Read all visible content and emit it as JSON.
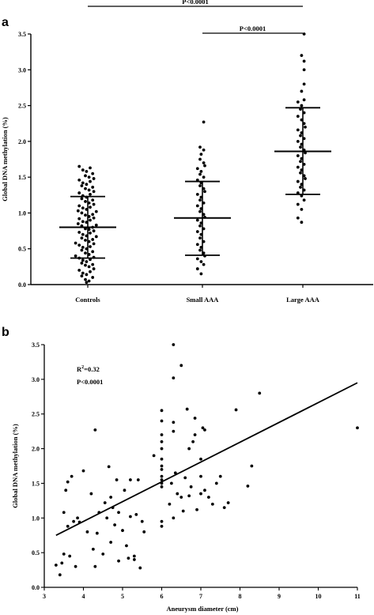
{
  "chart_data": [
    {
      "type": "scatter",
      "panel": "a",
      "ylabel": "Global DNA methylation (%)",
      "ylim": [
        0,
        3.5
      ],
      "yticks": [
        "0.0",
        "0.5",
        "1.0",
        "1.5",
        "2.0",
        "2.5",
        "3.0",
        "3.5"
      ],
      "categories": [
        "Controls",
        "Small AAA",
        "Large AAA"
      ],
      "significance": [
        {
          "label": "P<0.0001",
          "from": "Controls",
          "to": "Large AAA"
        },
        {
          "label": "P<0.0001",
          "from": "Small AAA",
          "to": "Large AAA"
        }
      ],
      "groups": [
        {
          "name": "Controls",
          "mean": 0.8,
          "sd_upper": 1.23,
          "sd_lower": 0.37,
          "values": [
            0.03,
            0.05,
            0.07,
            0.1,
            0.12,
            0.14,
            0.16,
            0.18,
            0.2,
            0.22,
            0.25,
            0.27,
            0.28,
            0.3,
            0.32,
            0.34,
            0.35,
            0.37,
            0.38,
            0.4,
            0.42,
            0.44,
            0.46,
            0.48,
            0.5,
            0.52,
            0.53,
            0.55,
            0.57,
            0.58,
            0.6,
            0.62,
            0.63,
            0.65,
            0.67,
            0.68,
            0.7,
            0.72,
            0.73,
            0.75,
            0.77,
            0.78,
            0.8,
            0.82,
            0.83,
            0.85,
            0.87,
            0.88,
            0.9,
            0.92,
            0.93,
            0.95,
            0.97,
            0.98,
            1.0,
            1.02,
            1.03,
            1.05,
            1.07,
            1.08,
            1.1,
            1.12,
            1.14,
            1.16,
            1.18,
            1.2,
            1.22,
            1.24,
            1.26,
            1.28,
            1.3,
            1.32,
            1.34,
            1.36,
            1.38,
            1.4,
            1.42,
            1.44,
            1.46,
            1.48,
            1.5,
            1.52,
            1.55,
            1.58,
            1.6,
            1.63,
            1.65
          ]
        },
        {
          "name": "Small AAA",
          "mean": 0.93,
          "sd_upper": 1.44,
          "sd_lower": 0.41,
          "values": [
            0.15,
            0.22,
            0.28,
            0.32,
            0.36,
            0.4,
            0.44,
            0.48,
            0.52,
            0.56,
            0.6,
            0.65,
            0.7,
            0.74,
            0.78,
            0.82,
            0.86,
            0.9,
            0.94,
            0.98,
            1.02,
            1.06,
            1.1,
            1.14,
            1.18,
            1.22,
            1.26,
            1.3,
            1.34,
            1.38,
            1.42,
            1.46,
            1.5,
            1.54,
            1.58,
            1.62,
            1.66,
            1.7,
            1.75,
            1.82,
            1.88,
            1.92,
            2.27
          ]
        },
        {
          "name": "Large AAA",
          "mean": 1.86,
          "sd_upper": 2.47,
          "sd_lower": 1.26,
          "values": [
            0.87,
            0.93,
            1.05,
            1.12,
            1.18,
            1.24,
            1.28,
            1.32,
            1.36,
            1.4,
            1.44,
            1.48,
            1.52,
            1.56,
            1.6,
            1.64,
            1.68,
            1.72,
            1.76,
            1.8,
            1.84,
            1.88,
            1.92,
            1.96,
            2.0,
            2.04,
            2.08,
            2.12,
            2.16,
            2.2,
            2.25,
            2.3,
            2.35,
            2.4,
            2.45,
            2.5,
            2.55,
            2.58,
            2.7,
            2.8,
            3.0,
            3.12,
            3.2,
            3.5
          ]
        }
      ]
    },
    {
      "type": "scatter",
      "panel": "b",
      "xlabel": "Aneurysm diameter (cm)",
      "ylabel": "Global DNA methylation (%)",
      "xlim": [
        3,
        11
      ],
      "ylim": [
        0,
        3.5
      ],
      "xticks": [
        "3",
        "4",
        "5",
        "6",
        "7",
        "8",
        "9",
        "10",
        "11"
      ],
      "yticks": [
        "0.0",
        "0.5",
        "1.0",
        "1.5",
        "2.0",
        "2.5",
        "3.0",
        "3.5"
      ],
      "annotation": {
        "r2_label": "R",
        "r2_sup": "2",
        "r2_value": "=0.32",
        "p_label": "P<0.0001"
      },
      "regression": {
        "x": [
          3.3,
          11
        ],
        "y": [
          0.75,
          2.95
        ]
      },
      "points": [
        [
          3.3,
          0.32
        ],
        [
          3.4,
          0.18
        ],
        [
          3.45,
          0.35
        ],
        [
          3.5,
          0.48
        ],
        [
          3.5,
          1.08
        ],
        [
          3.55,
          1.4
        ],
        [
          3.6,
          0.88
        ],
        [
          3.6,
          1.52
        ],
        [
          3.65,
          0.45
        ],
        [
          3.7,
          1.6
        ],
        [
          3.75,
          0.95
        ],
        [
          3.8,
          0.3
        ],
        [
          3.85,
          1.0
        ],
        [
          3.9,
          0.94
        ],
        [
          4.0,
          1.68
        ],
        [
          4.1,
          0.8
        ],
        [
          4.2,
          1.35
        ],
        [
          4.25,
          0.55
        ],
        [
          4.3,
          0.3
        ],
        [
          4.3,
          2.27
        ],
        [
          4.35,
          0.78
        ],
        [
          4.4,
          1.08
        ],
        [
          4.5,
          0.48
        ],
        [
          4.55,
          1.22
        ],
        [
          4.6,
          1.0
        ],
        [
          4.65,
          1.74
        ],
        [
          4.7,
          0.65
        ],
        [
          4.7,
          1.3
        ],
        [
          4.75,
          1.15
        ],
        [
          4.8,
          0.9
        ],
        [
          4.85,
          1.55
        ],
        [
          4.9,
          1.08
        ],
        [
          4.9,
          0.38
        ],
        [
          5.0,
          0.82
        ],
        [
          5.05,
          1.4
        ],
        [
          5.1,
          0.6
        ],
        [
          5.15,
          0.42
        ],
        [
          5.2,
          1.55
        ],
        [
          5.2,
          1.02
        ],
        [
          5.3,
          0.4
        ],
        [
          5.3,
          0.45
        ],
        [
          5.35,
          1.05
        ],
        [
          5.4,
          1.55
        ],
        [
          5.45,
          0.28
        ],
        [
          5.5,
          0.95
        ],
        [
          5.55,
          0.8
        ],
        [
          5.8,
          1.9
        ],
        [
          6.0,
          0.88
        ],
        [
          6.0,
          0.95
        ],
        [
          6.0,
          1.45
        ],
        [
          6.0,
          1.5
        ],
        [
          6.0,
          1.55
        ],
        [
          6.0,
          1.6
        ],
        [
          6.0,
          1.7
        ],
        [
          6.0,
          1.75
        ],
        [
          6.0,
          1.85
        ],
        [
          6.0,
          2.0
        ],
        [
          6.0,
          2.1
        ],
        [
          6.0,
          2.2
        ],
        [
          6.0,
          2.4
        ],
        [
          6.0,
          2.55
        ],
        [
          6.2,
          1.2
        ],
        [
          6.25,
          1.5
        ],
        [
          6.3,
          1.0
        ],
        [
          6.3,
          2.25
        ],
        [
          6.3,
          2.38
        ],
        [
          6.3,
          3.02
        ],
        [
          6.3,
          3.5
        ],
        [
          6.35,
          1.65
        ],
        [
          6.4,
          1.35
        ],
        [
          6.5,
          3.2
        ],
        [
          6.5,
          1.3
        ],
        [
          6.55,
          1.1
        ],
        [
          6.6,
          1.58
        ],
        [
          6.65,
          2.57
        ],
        [
          6.7,
          1.32
        ],
        [
          6.7,
          2.0
        ],
        [
          6.75,
          1.45
        ],
        [
          6.8,
          2.1
        ],
        [
          6.85,
          2.2
        ],
        [
          6.85,
          2.44
        ],
        [
          6.9,
          1.12
        ],
        [
          7.0,
          1.35
        ],
        [
          7.0,
          1.6
        ],
        [
          7.0,
          1.85
        ],
        [
          7.05,
          2.3
        ],
        [
          7.1,
          1.4
        ],
        [
          7.1,
          2.27
        ],
        [
          7.2,
          1.3
        ],
        [
          7.3,
          1.2
        ],
        [
          7.4,
          1.5
        ],
        [
          7.5,
          1.6
        ],
        [
          7.6,
          1.15
        ],
        [
          7.7,
          1.22
        ],
        [
          7.9,
          2.56
        ],
        [
          8.2,
          1.46
        ],
        [
          8.3,
          1.75
        ],
        [
          8.5,
          2.8
        ],
        [
          11.0,
          2.3
        ]
      ]
    }
  ]
}
